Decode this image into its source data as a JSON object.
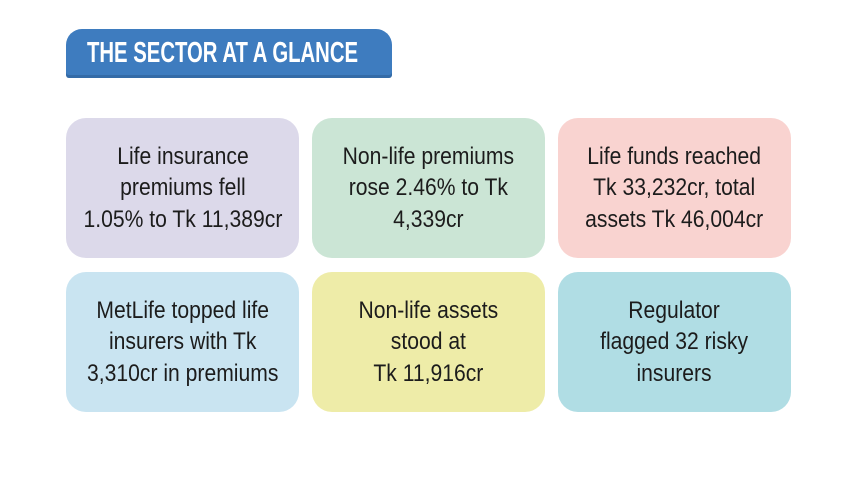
{
  "header": {
    "title": "THE SECTOR AT A GLANCE",
    "background_color": "#3E7CBF",
    "text_color": "#FFFFFF"
  },
  "card_text_color": "#1C1C1C",
  "cards": [
    {
      "id": "life-insurance-premiums",
      "lines": [
        "Life insurance",
        "premiums fell",
        "1.05% to Tk 11,389cr"
      ],
      "background_color": "#DCD9EA"
    },
    {
      "id": "non-life-premiums",
      "lines": [
        "Non-life premiums",
        "rose 2.46% to Tk",
        "4,339cr"
      ],
      "background_color": "#CBE5D5"
    },
    {
      "id": "life-funds-total-assets",
      "lines": [
        "Life funds reached",
        "Tk 33,232cr, total",
        "assets Tk 46,004cr"
      ],
      "background_color": "#F9D3D0"
    },
    {
      "id": "metlife-top-insurer",
      "lines": [
        "MetLife topped life",
        "insurers with Tk",
        "3,310cr in premiums"
      ],
      "background_color": "#C9E4F1"
    },
    {
      "id": "non-life-assets",
      "lines": [
        "Non-life assets",
        "stood at",
        "Tk 11,916cr"
      ],
      "background_color": "#EEECA8"
    },
    {
      "id": "regulator-risky-insurers",
      "lines": [
        "Regulator",
        "flagged 32 risky",
        "insurers"
      ],
      "background_color": "#B0DDE4"
    }
  ]
}
